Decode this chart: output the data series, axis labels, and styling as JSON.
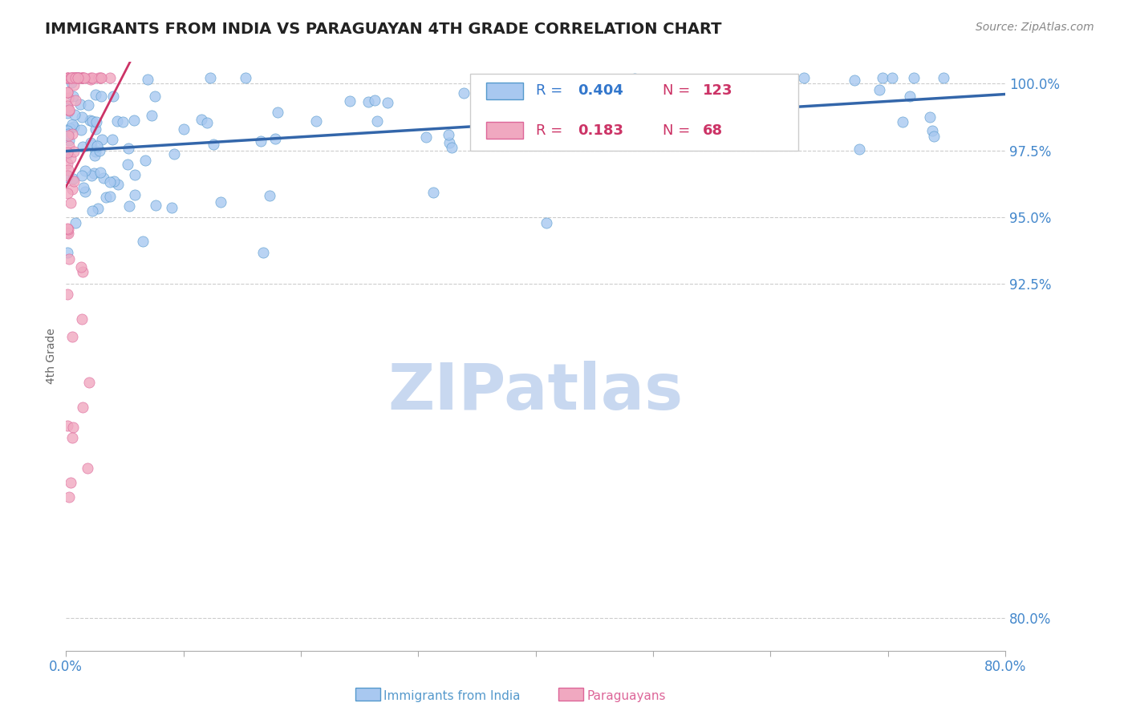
{
  "title": "IMMIGRANTS FROM INDIA VS PARAGUAYAN 4TH GRADE CORRELATION CHART",
  "source": "Source: ZipAtlas.com",
  "ylabel": "4th Grade",
  "xlim": [
    0.0,
    0.8
  ],
  "ylim": [
    0.788,
    1.008
  ],
  "yticks": [
    0.8,
    0.925,
    0.95,
    0.975,
    1.0
  ],
  "ytick_labels": [
    "80.0%",
    "92.5%",
    "95.0%",
    "97.5%",
    "100.0%"
  ],
  "xticks": [
    0.0,
    0.1,
    0.2,
    0.3,
    0.4,
    0.5,
    0.6,
    0.7,
    0.8
  ],
  "xtick_labels": [
    "0.0%",
    "",
    "",
    "",
    "",
    "",
    "",
    "",
    "80.0%"
  ],
  "blue_R": 0.404,
  "blue_N": 123,
  "pink_R": 0.183,
  "pink_N": 68,
  "blue_color": "#a8c8f0",
  "blue_edge_color": "#5599cc",
  "blue_line_color": "#3366aa",
  "pink_color": "#f0a8c0",
  "pink_edge_color": "#dd6699",
  "pink_line_color": "#cc3366",
  "legend_R_color": "#3377cc",
  "legend_N_color": "#cc3366",
  "watermark": "ZIPatlas",
  "watermark_color": "#c8d8f0",
  "background_color": "#ffffff",
  "grid_color": "#cccccc",
  "title_color": "#222222",
  "axis_label_color": "#666666",
  "tick_color": "#4488cc",
  "title_fontsize": 14,
  "source_fontsize": 10,
  "tick_fontsize": 12,
  "ylabel_fontsize": 10,
  "legend_fontsize": 13
}
